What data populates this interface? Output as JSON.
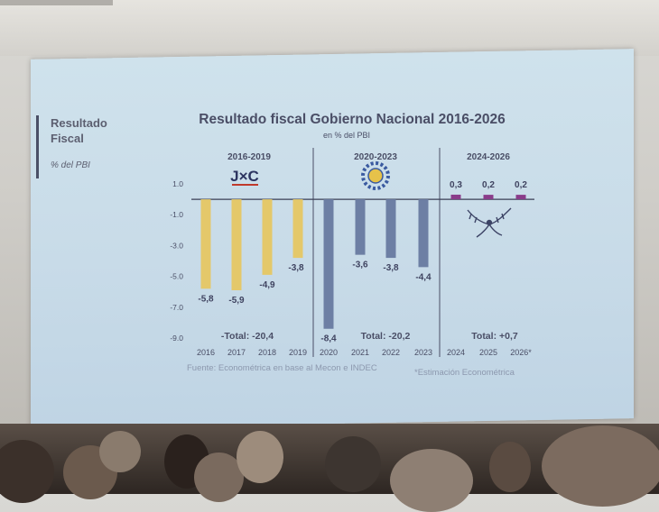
{
  "side_panel": {
    "title": "Resultado Fiscal",
    "subtitle": "% del PBI"
  },
  "chart_data": {
    "type": "bar",
    "title": "Resultado fiscal Gobierno Nacional 2016-2026",
    "subtitle": "en % del PBI",
    "ylim": [
      -9.0,
      1.0
    ],
    "yticks": [
      "1.0",
      "-1.0",
      "-3.0",
      "-5.0",
      "-7.0",
      "-9.0"
    ],
    "ytick_values": [
      1.0,
      -1.0,
      -3.0,
      -5.0,
      -7.0,
      -9.0
    ],
    "categories": [
      "2016",
      "2017",
      "2018",
      "2019",
      "2020",
      "2021",
      "2022",
      "2023",
      "2024",
      "2025",
      "2026*"
    ],
    "values": [
      -5.8,
      -5.9,
      -4.9,
      -3.8,
      -8.4,
      -3.6,
      -3.8,
      -4.4,
      0.3,
      0.2,
      0.2
    ],
    "value_labels": [
      "-5,8",
      "-5,9",
      "-4,9",
      "-3,8",
      "-8,4",
      "-3,6",
      "-3,8",
      "-4,4",
      "0,3",
      "0,2",
      "0,2"
    ],
    "periods": [
      {
        "label": "2016-2019",
        "logo_text": "J×C",
        "total": "-Total: -20,4",
        "color": "#e4c86a"
      },
      {
        "label": "2020-2023",
        "logo_text": "",
        "total": "Total: -20,2",
        "color": "#6d7fa4"
      },
      {
        "label": "2024-2026",
        "logo_text": "",
        "total": "Total: +0,7",
        "color": "#8a3c8a"
      }
    ],
    "grid": false,
    "legend": "none"
  },
  "footer": {
    "source": "Fuente: Econométrica en base al Mecon e INDEC",
    "note": "*Estimación Econométrica"
  }
}
